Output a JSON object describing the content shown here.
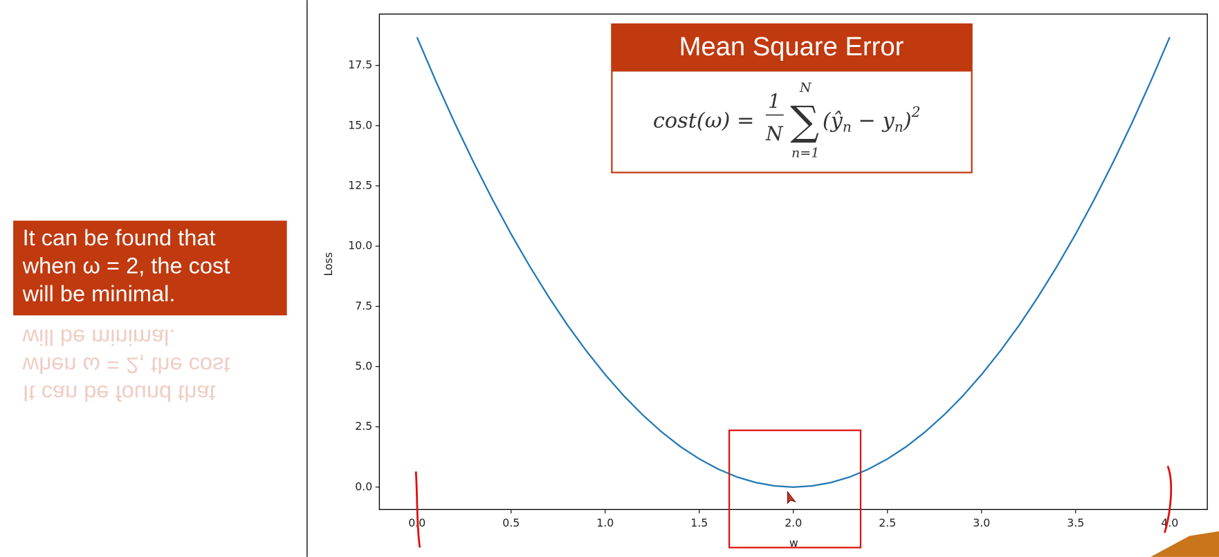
{
  "chart_data": {
    "type": "line",
    "xlabel": "w",
    "ylabel": "Loss",
    "x": [
      0,
      0.1,
      0.2,
      0.3,
      0.4,
      0.5,
      0.6,
      0.7,
      0.8,
      0.9,
      1.0,
      1.1,
      1.2,
      1.3,
      1.4,
      1.5,
      1.6,
      1.7,
      1.8,
      1.9,
      2.0,
      2.1,
      2.2,
      2.3,
      2.4,
      2.5,
      2.6,
      2.7,
      2.8,
      2.9,
      3.0,
      3.1,
      3.2,
      3.3,
      3.4,
      3.5,
      3.6,
      3.7,
      3.8,
      3.9,
      4.0
    ],
    "series": [
      {
        "color": "#1f77b4",
        "values": [
          18.67,
          16.85,
          15.12,
          13.49,
          11.95,
          10.5,
          9.15,
          7.89,
          6.72,
          5.65,
          4.67,
          3.78,
          2.99,
          2.29,
          1.68,
          1.17,
          0.75,
          0.42,
          0.19,
          0.05,
          0,
          0.05,
          0.19,
          0.42,
          0.75,
          1.17,
          1.68,
          2.29,
          2.99,
          3.78,
          4.67,
          5.65,
          6.72,
          7.89,
          9.15,
          10.5,
          11.95,
          13.49,
          15.12,
          16.85,
          18.67
        ]
      }
    ],
    "xlim": [
      -0.2,
      4.2
    ],
    "ylim": [
      -0.93,
      19.63
    ],
    "xticks": [
      {
        "value": 0,
        "label": "0.0"
      },
      {
        "value": 0.5,
        "label": "0.5"
      },
      {
        "value": 1,
        "label": "1.0"
      },
      {
        "value": 1.5,
        "label": "1.5"
      },
      {
        "value": 2,
        "label": "2.0"
      },
      {
        "value": 2.5,
        "label": "2.5"
      },
      {
        "value": 3,
        "label": "3.0"
      },
      {
        "value": 3.5,
        "label": "3.5"
      },
      {
        "value": 4,
        "label": "4.0"
      }
    ],
    "yticks": [
      {
        "value": 0,
        "label": "0.0"
      },
      2.5,
      {
        "value": 5,
        "label": "5.0"
      },
      7.5,
      {
        "value": 10,
        "label": "10.0"
      },
      12.5,
      {
        "value": 15,
        "label": "15.0"
      },
      17.5
    ]
  },
  "callout": {
    "lines": [
      "It can be found that",
      "when ω = 2, the cost",
      "will be minimal."
    ]
  },
  "formula_box": {
    "title": "Mean Square Error",
    "lhs": "cost(ω) =",
    "numerator": "1",
    "denominator": "N",
    "sum_top": "N",
    "sum_symbol": "∑",
    "sum_bottom": "n=1",
    "term": "(ŷ",
    "sub1": "n",
    "minus": " − y",
    "sub2": "n",
    "close": ")",
    "power": "2"
  }
}
